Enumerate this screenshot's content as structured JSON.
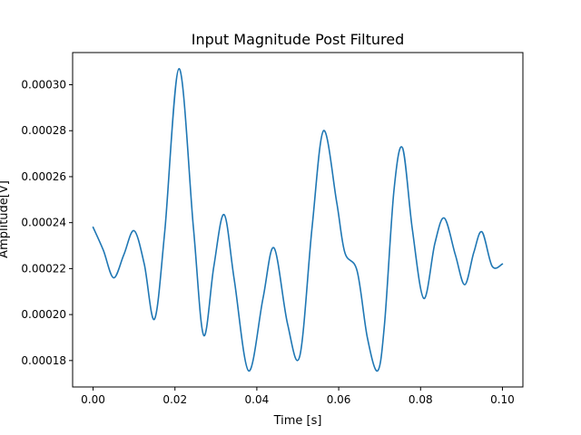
{
  "chart_data": {
    "type": "line",
    "title": "Input Magnitude Post Filtured",
    "xlabel": "Time [s]",
    "ylabel": "Amplitude[V]",
    "xlim": [
      -0.005,
      0.105
    ],
    "ylim": [
      0.0001685,
      0.000314
    ],
    "xticks": [
      0.0,
      0.02,
      0.04,
      0.06,
      0.08,
      0.1
    ],
    "xtick_labels": [
      "0.00",
      "0.02",
      "0.04",
      "0.06",
      "0.08",
      "0.10"
    ],
    "yticks": [
      0.00018,
      0.0002,
      0.00022,
      0.00024,
      0.00026,
      0.00028,
      0.0003
    ],
    "ytick_labels": [
      "0.00018",
      "0.00020",
      "0.00022",
      "0.00024",
      "0.00026",
      "0.00028",
      "0.00030"
    ],
    "grid": false,
    "line_color": "#1f77b4",
    "series": [
      {
        "x": [
          0.0,
          0.0025,
          0.005,
          0.0075,
          0.01,
          0.0125,
          0.015,
          0.0175,
          0.021,
          0.0245,
          0.027,
          0.0295,
          0.032,
          0.0345,
          0.038,
          0.0415,
          0.0442,
          0.0475,
          0.0505,
          0.0535,
          0.0563,
          0.0595,
          0.0615,
          0.0645,
          0.067,
          0.0695,
          0.0712,
          0.0735,
          0.0756,
          0.078,
          0.0808,
          0.0835,
          0.0858,
          0.0885,
          0.0908,
          0.093,
          0.095,
          0.0975,
          0.1
        ],
        "y": [
          0.000238,
          0.000228,
          0.000216,
          0.000226,
          0.0002365,
          0.000222,
          0.000198,
          0.000236,
          0.000307,
          0.000238,
          0.000191,
          0.000221,
          0.0002435,
          0.000215,
          0.0001755,
          0.000207,
          0.000229,
          0.000196,
          0.000182,
          0.000238,
          0.00028,
          0.000249,
          0.000227,
          0.000219,
          0.00019,
          0.0001755,
          0.000196,
          0.000254,
          0.0002725,
          0.000237,
          0.000207,
          0.000231,
          0.000242,
          0.000226,
          0.000213,
          0.000227,
          0.000236,
          0.000221,
          0.000222
        ]
      }
    ]
  }
}
